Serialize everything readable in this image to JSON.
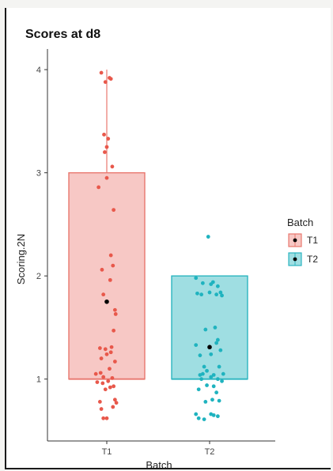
{
  "chart_data": {
    "type": "boxplot",
    "title": "Scores at d8",
    "xlabel": "Batch",
    "ylabel": "Scoring.2N",
    "categories": [
      "T1",
      "T2"
    ],
    "ylim": [
      0.4,
      4.2
    ],
    "yticks": [
      1,
      2,
      3,
      4
    ],
    "legend": {
      "title": "Batch",
      "position": "right",
      "items": [
        "T1",
        "T2"
      ]
    },
    "colors": {
      "T1_fill": "#f4b6b2",
      "T1_stroke": "#e8776e",
      "T1_point": "#e8584b",
      "T2_fill": "#7fd3d8",
      "T2_stroke": "#2cb5c0",
      "T2_point": "#1fb3bf",
      "mean": "#000000"
    },
    "series": [
      {
        "name": "T1",
        "box": {
          "q1": 1.0,
          "median": 1.0,
          "q3": 3.0,
          "whisker_low": 1.0,
          "whisker_high": 4.0
        },
        "mean": 1.75,
        "points": [
          [
            -0.08,
            3.97
          ],
          [
            0.04,
            3.92
          ],
          [
            -0.02,
            3.88
          ],
          [
            0.06,
            3.91
          ],
          [
            -0.04,
            3.37
          ],
          [
            0.02,
            3.33
          ],
          [
            0.0,
            3.25
          ],
          [
            -0.03,
            3.2
          ],
          [
            0.08,
            3.06
          ],
          [
            0.0,
            2.95
          ],
          [
            -0.12,
            2.86
          ],
          [
            0.1,
            2.64
          ],
          [
            0.06,
            2.2
          ],
          [
            0.09,
            2.1
          ],
          [
            -0.07,
            2.06
          ],
          [
            0.05,
            1.96
          ],
          [
            -0.05,
            1.82
          ],
          [
            0.12,
            1.67
          ],
          [
            0.13,
            1.63
          ],
          [
            0.1,
            1.47
          ],
          [
            -0.1,
            1.3
          ],
          [
            -0.02,
            1.29
          ],
          [
            0.07,
            1.31
          ],
          [
            0.06,
            1.26
          ],
          [
            0.0,
            1.24
          ],
          [
            -0.08,
            1.2
          ],
          [
            0.12,
            1.17
          ],
          [
            0.04,
            1.1
          ],
          [
            -0.09,
            1.06
          ],
          [
            -0.16,
            1.05
          ],
          [
            -0.05,
            1.02
          ],
          [
            0.08,
            1.01
          ],
          [
            0.02,
            0.98
          ],
          [
            -0.14,
            0.97
          ],
          [
            -0.06,
            0.96
          ],
          [
            0.1,
            0.93
          ],
          [
            0.05,
            0.92
          ],
          [
            -0.02,
            0.9
          ],
          [
            -0.1,
            0.78
          ],
          [
            0.12,
            0.8
          ],
          [
            0.14,
            0.77
          ],
          [
            0.09,
            0.73
          ],
          [
            -0.08,
            0.71
          ],
          [
            -0.05,
            0.62
          ],
          [
            0.0,
            0.62
          ]
        ]
      },
      {
        "name": "T2",
        "box": {
          "q1": 1.0,
          "median": 1.0,
          "q3": 2.0,
          "whisker_low": 1.0,
          "whisker_high": 2.0
        },
        "mean": 1.31,
        "points": [
          [
            -0.02,
            2.38
          ],
          [
            -0.2,
            1.98
          ],
          [
            0.05,
            1.94
          ],
          [
            -0.1,
            1.93
          ],
          [
            0.02,
            1.92
          ],
          [
            0.12,
            1.9
          ],
          [
            0.16,
            1.84
          ],
          [
            0.0,
            1.84
          ],
          [
            -0.18,
            1.83
          ],
          [
            -0.12,
            1.82
          ],
          [
            0.1,
            1.82
          ],
          [
            0.18,
            1.81
          ],
          [
            0.08,
            1.5
          ],
          [
            -0.06,
            1.48
          ],
          [
            0.12,
            1.38
          ],
          [
            0.1,
            1.35
          ],
          [
            -0.2,
            1.33
          ],
          [
            0.16,
            1.28
          ],
          [
            -0.14,
            1.23
          ],
          [
            0.02,
            1.24
          ],
          [
            -0.08,
            1.12
          ],
          [
            0.14,
            1.12
          ],
          [
            -0.04,
            1.08
          ],
          [
            -0.1,
            1.05
          ],
          [
            -0.14,
            1.04
          ],
          [
            0.06,
            1.04
          ],
          [
            0.2,
            1.05
          ],
          [
            0.02,
            1.02
          ],
          [
            -0.12,
            1.0
          ],
          [
            0.12,
            1.0
          ],
          [
            0.18,
            0.98
          ],
          [
            -0.04,
            0.94
          ],
          [
            0.06,
            0.93
          ],
          [
            -0.16,
            0.9
          ],
          [
            0.1,
            0.87
          ],
          [
            0.04,
            0.8
          ],
          [
            -0.06,
            0.78
          ],
          [
            0.14,
            0.79
          ],
          [
            -0.2,
            0.66
          ],
          [
            0.02,
            0.66
          ],
          [
            0.12,
            0.64
          ],
          [
            -0.16,
            0.62
          ],
          [
            -0.08,
            0.61
          ],
          [
            0.06,
            0.65
          ]
        ]
      }
    ]
  }
}
